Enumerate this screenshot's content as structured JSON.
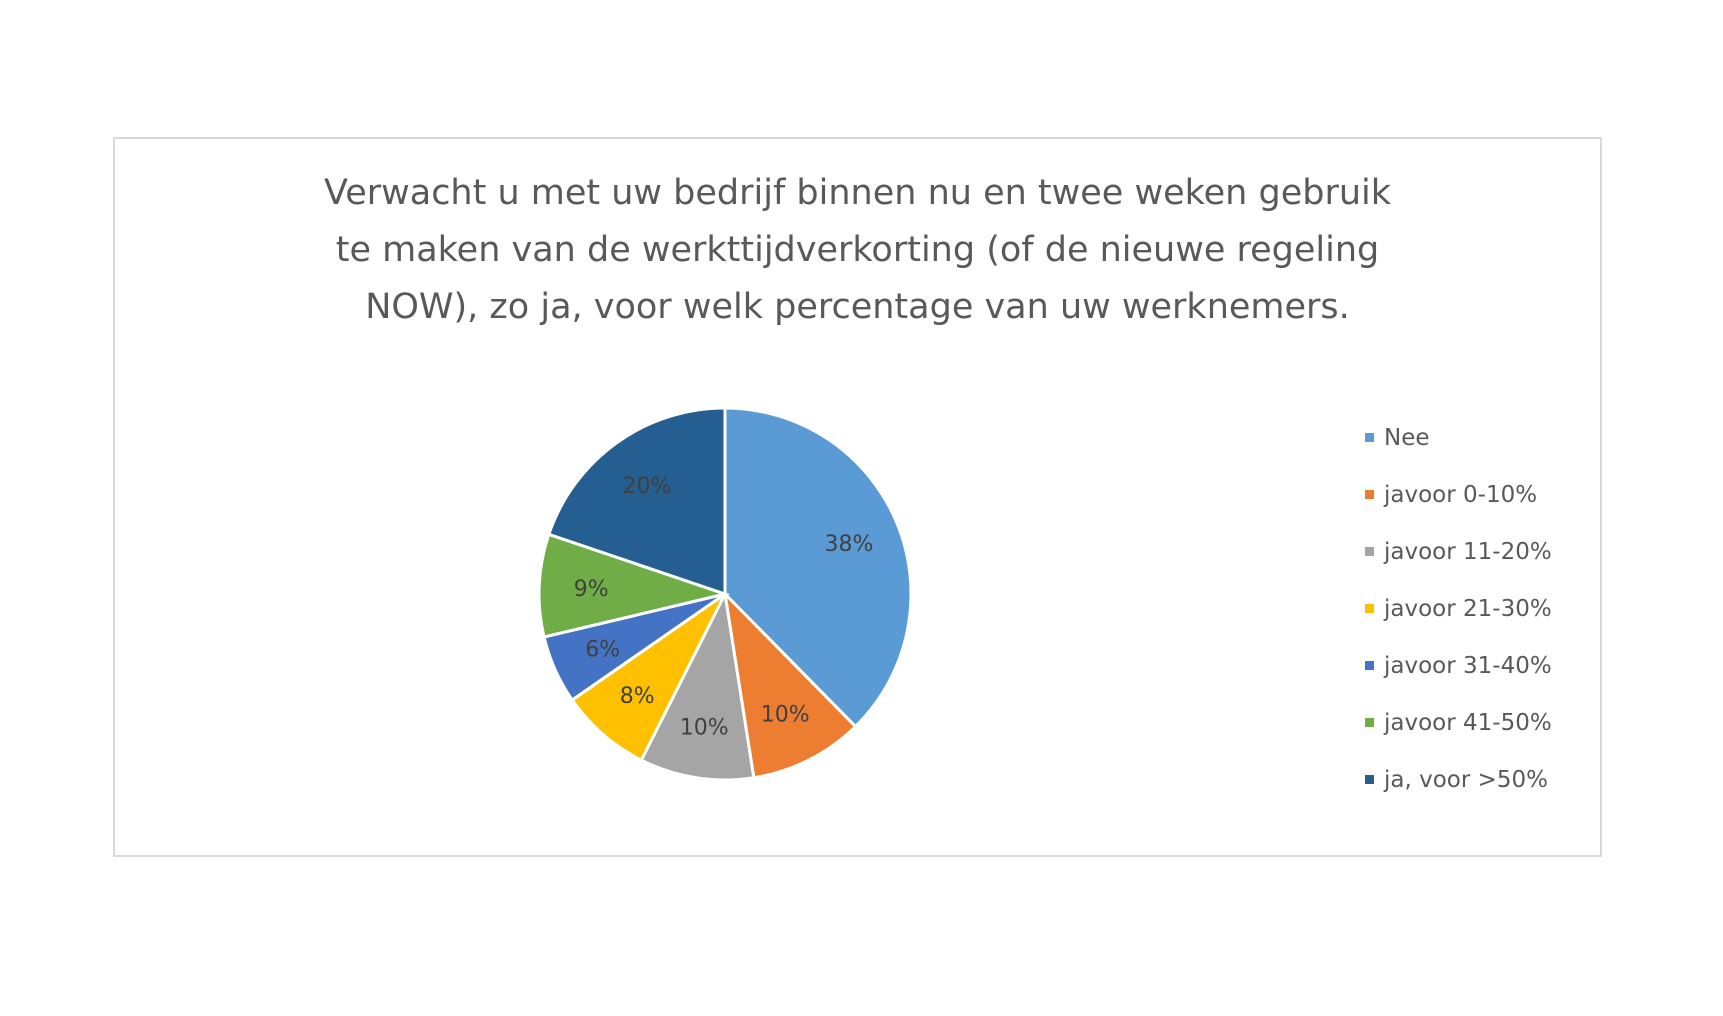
{
  "chart_data": {
    "type": "pie",
    "title_lines": [
      "Verwacht u met uw bedrijf binnen nu en twee weken gebruik",
      "te maken van de werkttijdverkorting (of de nieuwe regeling",
      "NOW), zo ja, voor welk percentage van uw werknemers."
    ],
    "categories": [
      "Nee",
      "javoor 0-10%",
      "javoor 11-20%",
      "javoor 21-30%",
      "javoor 31-40%",
      "javoor 41-50%",
      "ja, voor >50%"
    ],
    "values": [
      38,
      10,
      10,
      8,
      6,
      9,
      20
    ],
    "data_labels": [
      "38%",
      "10%",
      "10%",
      "8%",
      "6%",
      "9%",
      "20%"
    ],
    "colors": [
      "#5B9BD5",
      "#ED7D31",
      "#A5A5A5",
      "#FFC000",
      "#4472C4",
      "#70AD47",
      "#255E91"
    ],
    "start": "12 o'clock, clockwise",
    "legend_position": "right"
  }
}
